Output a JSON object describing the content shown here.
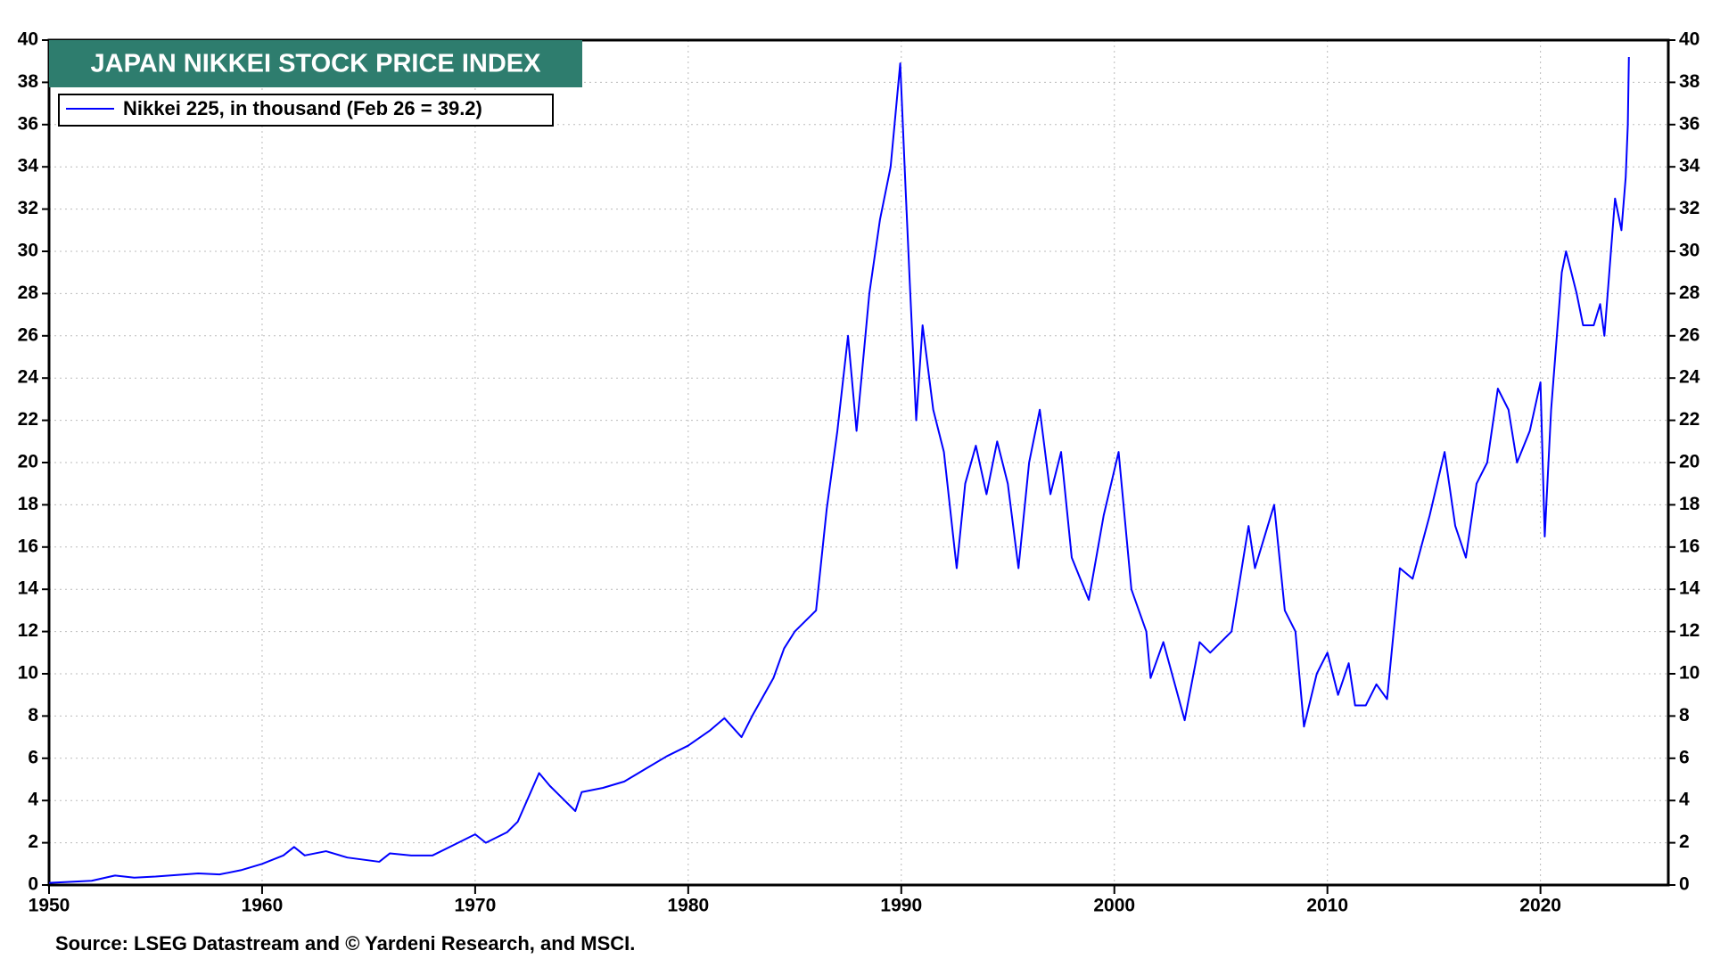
{
  "chart_data": {
    "type": "line",
    "title": "JAPAN NIKKEI STOCK PRICE INDEX",
    "source": "Source: LSEG Datastream and © Yardeni Research, and MSCI.",
    "x": [
      1950,
      1952,
      1953.1,
      1954,
      1955,
      1957,
      1958,
      1959,
      1960,
      1961,
      1961.5,
      1962,
      1963,
      1964,
      1965.5,
      1966,
      1967,
      1968,
      1969,
      1970,
      1970.5,
      1971.5,
      1972,
      1973,
      1973.5,
      1974,
      1974.7,
      1975,
      1976,
      1977,
      1978,
      1979,
      1980,
      1981,
      1981.7,
      1982.5,
      1983,
      1984,
      1984.5,
      1985,
      1986,
      1986.5,
      1987,
      1987.5,
      1987.9,
      1988.5,
      1989,
      1989.5,
      1989.95,
      1990.2,
      1990.4,
      1990.7,
      1991,
      1991.5,
      1992,
      1992.6,
      1993,
      1993.5,
      1994,
      1994.5,
      1995,
      1995.5,
      1996,
      1996.5,
      1997,
      1997.5,
      1998,
      1998.8,
      1999.5,
      2000.2,
      2000.8,
      2001.5,
      2001.7,
      2002.3,
      2003.3,
      2004,
      2004.5,
      2005,
      2005.5,
      2006.3,
      2006.6,
      2007.5,
      2008,
      2008.5,
      2008.9,
      2009.5,
      2010,
      2010.5,
      2011,
      2011.3,
      2011.8,
      2012.3,
      2012.8,
      2013.4,
      2014,
      2014.8,
      2015.5,
      2016,
      2016.5,
      2017,
      2017.5,
      2018,
      2018.5,
      2018.9,
      2019.5,
      2020,
      2020.2,
      2020.5,
      2021,
      2021.2,
      2021.7,
      2022,
      2022.5,
      2022.8,
      2023,
      2023.5,
      2023.8,
      2024,
      2024.1,
      2024.15
    ],
    "series": [
      {
        "name": "Nikkei 225, in thousand (Feb 26 = 39.2)",
        "color": "#0000ff",
        "values": [
          0.1,
          0.2,
          0.45,
          0.35,
          0.4,
          0.55,
          0.5,
          0.7,
          1.0,
          1.4,
          1.8,
          1.4,
          1.6,
          1.3,
          1.1,
          1.5,
          1.4,
          1.4,
          1.9,
          2.4,
          2.0,
          2.5,
          3.0,
          5.3,
          4.7,
          4.2,
          3.5,
          4.4,
          4.6,
          4.9,
          5.5,
          6.1,
          6.6,
          7.3,
          7.9,
          7.0,
          8.0,
          9.8,
          11.2,
          12.0,
          13.0,
          17.8,
          21.5,
          26.0,
          21.5,
          28.0,
          31.5,
          34.0,
          38.9,
          33.0,
          28.5,
          22.0,
          26.5,
          22.5,
          20.5,
          15.0,
          19.0,
          20.8,
          18.5,
          21.0,
          19.0,
          15.0,
          20.0,
          22.5,
          18.5,
          20.5,
          15.5,
          13.5,
          17.5,
          20.5,
          14.0,
          12.0,
          9.8,
          11.5,
          7.8,
          11.5,
          11.0,
          11.5,
          12.0,
          17.0,
          15.0,
          18.0,
          13.0,
          12.0,
          7.5,
          10.0,
          11.0,
          9.0,
          10.5,
          8.5,
          8.5,
          9.5,
          8.8,
          15.0,
          14.5,
          17.5,
          20.5,
          17.0,
          15.5,
          19.0,
          20.0,
          23.5,
          22.5,
          20.0,
          21.5,
          23.8,
          16.5,
          22.5,
          29.0,
          30.0,
          28.0,
          26.5,
          26.5,
          27.5,
          26.0,
          32.5,
          31.0,
          33.5,
          36.0,
          39.2
        ]
      }
    ],
    "xlim": [
      1950,
      2026
    ],
    "xticks": [
      1950,
      1960,
      1970,
      1980,
      1990,
      2000,
      2010,
      2020
    ],
    "ylim": [
      0,
      40
    ],
    "yticks": [
      0,
      2,
      4,
      6,
      8,
      10,
      12,
      14,
      16,
      18,
      20,
      22,
      24,
      26,
      28,
      30,
      32,
      34,
      36,
      38,
      40
    ],
    "y2lim": [
      0,
      40
    ],
    "y2ticks": [
      0,
      2,
      4,
      6,
      8,
      10,
      12,
      14,
      16,
      18,
      20,
      22,
      24,
      26,
      28,
      30,
      32,
      34,
      36,
      38,
      40
    ],
    "grid": true
  }
}
